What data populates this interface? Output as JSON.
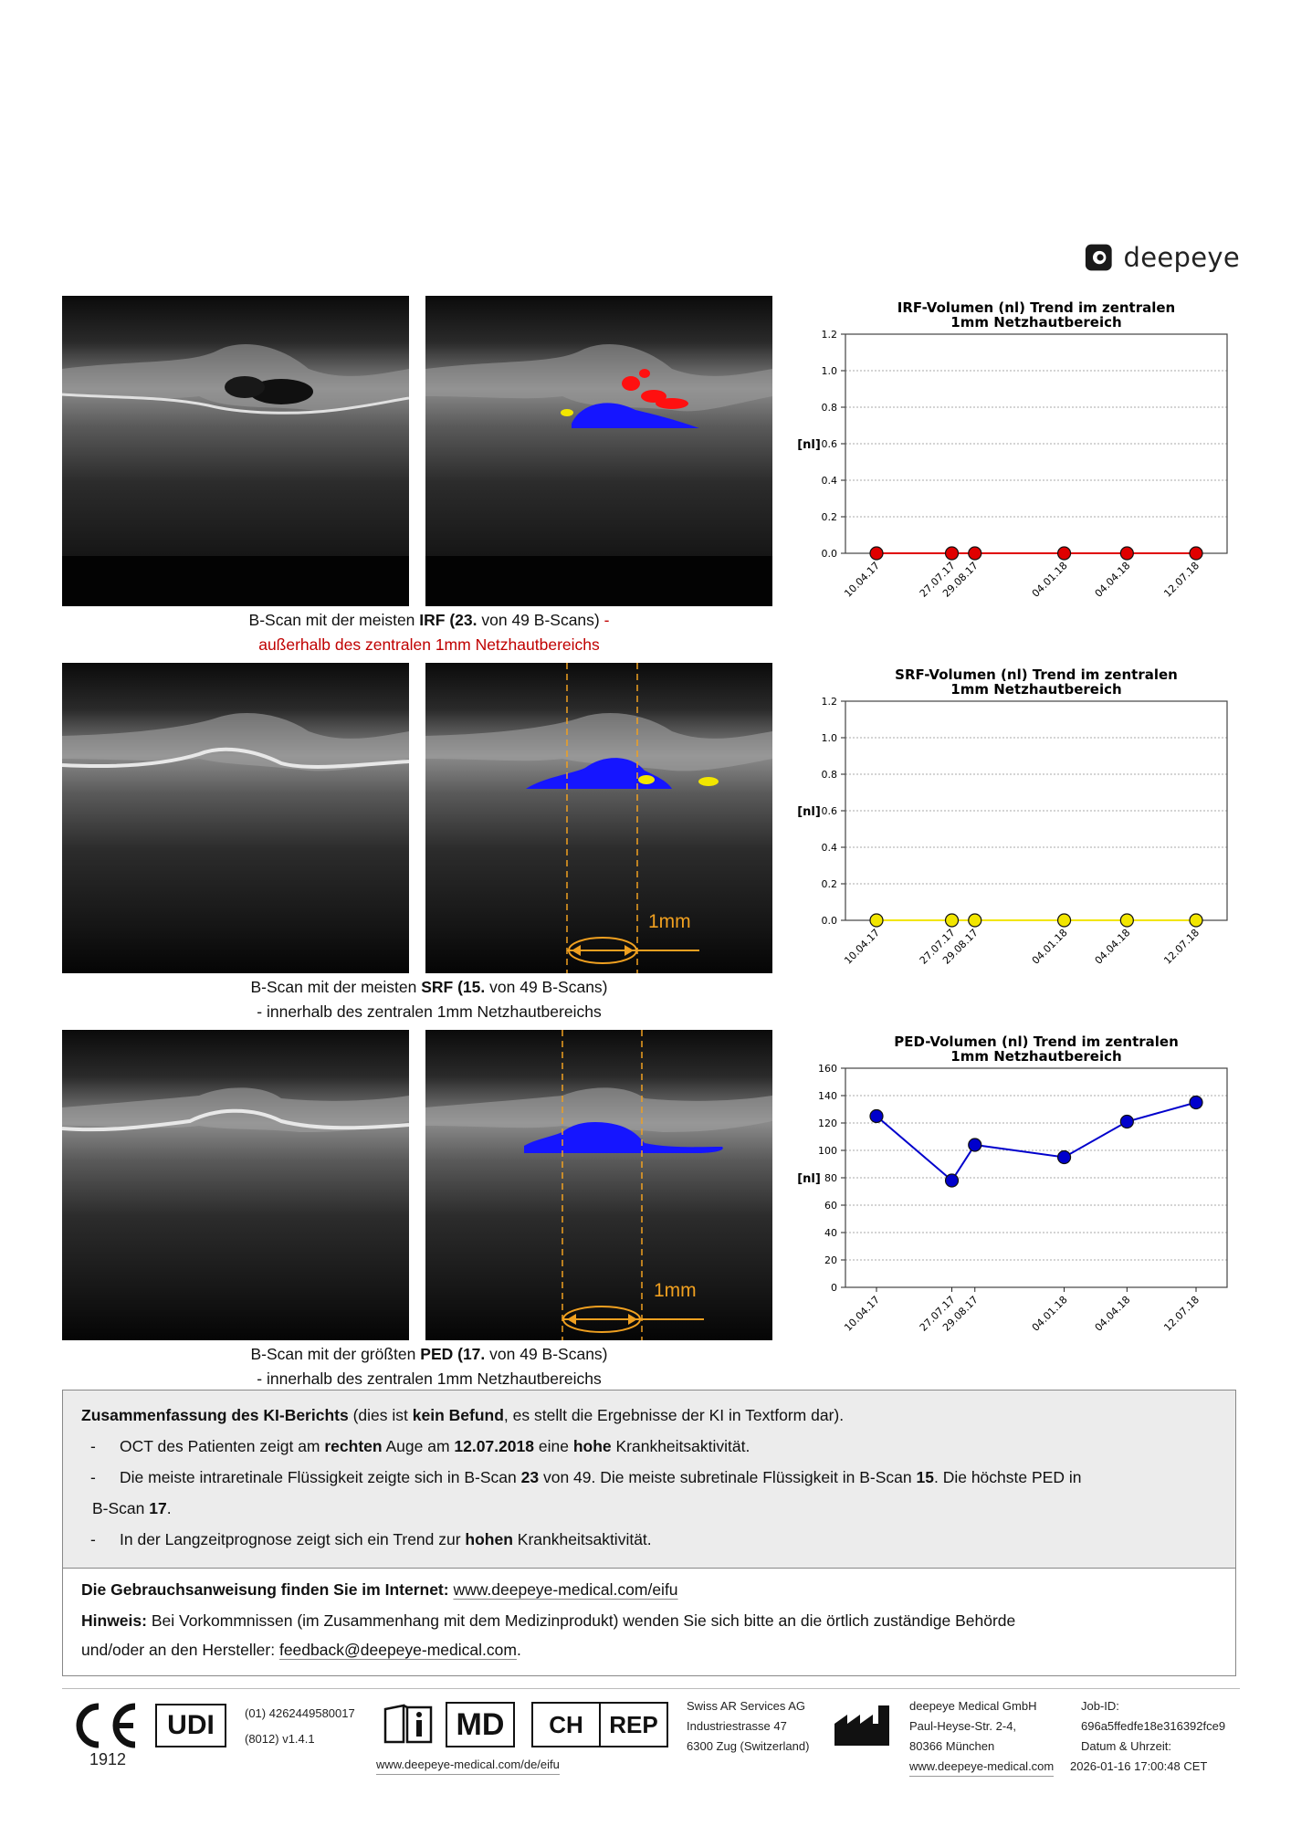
{
  "brand": {
    "logo_text": "deepeye"
  },
  "sections": [
    {
      "caption_line1_pre": "B-Scan mit der meisten ",
      "caption_bold": "IRF (23.",
      "caption_line1_post": " von 49 B-Scans) ",
      "caption_dash": "-",
      "caption_line2": "außerhalb des zentralen 1mm Netzhautbereichs",
      "line2_red": true
    },
    {
      "caption_line1_pre": "B-Scan mit der meisten ",
      "caption_bold": "SRF (15.",
      "caption_line1_post": " von 49 B-Scans)",
      "caption_line2": "- innerhalb des zentralen 1mm Netzhautbereichs",
      "scale_label": "1mm"
    },
    {
      "caption_line1_pre": "B-Scan mit der größten ",
      "caption_bold": "PED (17.",
      "caption_line1_post": " von 49 B-Scans)",
      "caption_line2": "- innerhalb des zentralen 1mm Netzhautbereichs",
      "scale_label": "1mm"
    }
  ],
  "chart_data": [
    {
      "type": "line",
      "title": "IRF-Volumen (nl) Trend im zentralen 1mm Netzhautbereich",
      "title_line1": "IRF-Volumen (nl) Trend im zentralen",
      "title_line2": "1mm Netzhautbereich",
      "ylabel": "[nl]",
      "ylim": [
        0,
        1.2
      ],
      "yticks": [
        "0.0",
        "0.2",
        "0.4",
        "0.6",
        "0.8",
        "1.0",
        "1.2"
      ],
      "x": [
        "10.04.17",
        "27.07.17",
        "29.08.17",
        "04.01.18",
        "04.04.18",
        "12.07.18"
      ],
      "x_days": [
        0,
        108,
        141,
        269,
        359,
        458
      ],
      "values": [
        0,
        0,
        0,
        0,
        0,
        0
      ],
      "color": "#e00000"
    },
    {
      "type": "line",
      "title": "SRF-Volumen (nl) Trend im zentralen 1mm Netzhautbereich",
      "title_line1": "SRF-Volumen (nl) Trend im zentralen",
      "title_line2": "1mm Netzhautbereich",
      "ylabel": "[nl]",
      "ylim": [
        0,
        1.2
      ],
      "yticks": [
        "0.0",
        "0.2",
        "0.4",
        "0.6",
        "0.8",
        "1.0",
        "1.2"
      ],
      "x": [
        "10.04.17",
        "27.07.17",
        "29.08.17",
        "04.01.18",
        "04.04.18",
        "12.07.18"
      ],
      "x_days": [
        0,
        108,
        141,
        269,
        359,
        458
      ],
      "values": [
        0,
        0,
        0,
        0,
        0,
        0
      ],
      "color": "#f2e600"
    },
    {
      "type": "line",
      "title": "PED-Volumen (nl) Trend im zentralen 1mm Netzhautbereich",
      "title_line1": "PED-Volumen (nl) Trend im zentralen",
      "title_line2": "1mm Netzhautbereich",
      "ylabel": "[nl]",
      "ylim": [
        0,
        160
      ],
      "yticks": [
        "0",
        "20",
        "40",
        "60",
        "80",
        "100",
        "120",
        "140",
        "160"
      ],
      "x": [
        "10.04.17",
        "27.07.17",
        "29.08.17",
        "04.01.18",
        "04.04.18",
        "12.07.18"
      ],
      "x_days": [
        0,
        108,
        141,
        269,
        359,
        458
      ],
      "values": [
        125,
        78,
        104,
        95,
        121,
        135
      ],
      "color": "#0000cc"
    }
  ],
  "summary": {
    "title_bold": "Zusammenfassung des KI-Berichts",
    "title_pre": " (dies ist ",
    "title_bold2": "kein Befund",
    "title_post": ", es stellt die Ergebnisse der KI in Textform dar).",
    "b1_a": "OCT des Patienten zeigt am ",
    "b1_b": "rechten",
    "b1_c": " Auge am ",
    "b1_d": "12.07.2018",
    "b1_e": " eine ",
    "b1_f": "hohe",
    "b1_g": " Krankheitsaktivität.",
    "b2_a": "Die meiste intraretinale Flüssigkeit zeigte sich in B-Scan ",
    "b2_b": "23",
    "b2_c": " von 49. Die meiste subretinale Flüssigkeit in B-Scan ",
    "b2_d": "15",
    "b2_e": ". Die höchste PED in",
    "b2_line2_a": "B-Scan ",
    "b2_line2_b": "17",
    "b2_line2_c": ".",
    "b3_a": "In der Langzeitprognose zeigt sich ein Trend zur ",
    "b3_b": "hohen",
    "b3_c": " Krankheitsaktivität.",
    "dash": "-"
  },
  "info": {
    "ifu_label": "Die Gebrauchsanweisung finden Sie im Internet:",
    "ifu_url": "www.deepeye-medical.com/eifu",
    "note_label": "Hinweis:",
    "note_text": " Bei Vorkommnissen (im Zusammenhang mit dem Medizinprodukt) wenden Sie sich bitte an die örtlich zuständige Behörde",
    "note_line2": "und/oder an den Hersteller: ",
    "note_email": "feedback@deepeye-medical.com",
    "note_end": "."
  },
  "footer": {
    "ce_number": "1912",
    "udi_label": "UDI",
    "udi_line1": "(01) 4262449580017",
    "udi_line2": "(8012) v1.4.1",
    "md_label": "MD",
    "ch_label": "CH",
    "rep_label": "REP",
    "eifu_url": "www.deepeye-medical.com/de/eifu",
    "rep_name": "Swiss AR Services AG",
    "rep_street": "Industriestrasse 47",
    "rep_city": "6300 Zug (Switzerland)",
    "mfr_name": "deepeye Medical GmbH",
    "mfr_street": "Paul-Heyse-Str. 2-4,",
    "mfr_city": "80366 München",
    "mfr_url": "www.deepeye-medical.com",
    "job_label": "Job-ID:",
    "job_id": "696a5ffedfe18e316392fce9",
    "date_label": "Datum & Uhrzeit:",
    "date_value": "2026-01-16 17:00:48 CET"
  }
}
